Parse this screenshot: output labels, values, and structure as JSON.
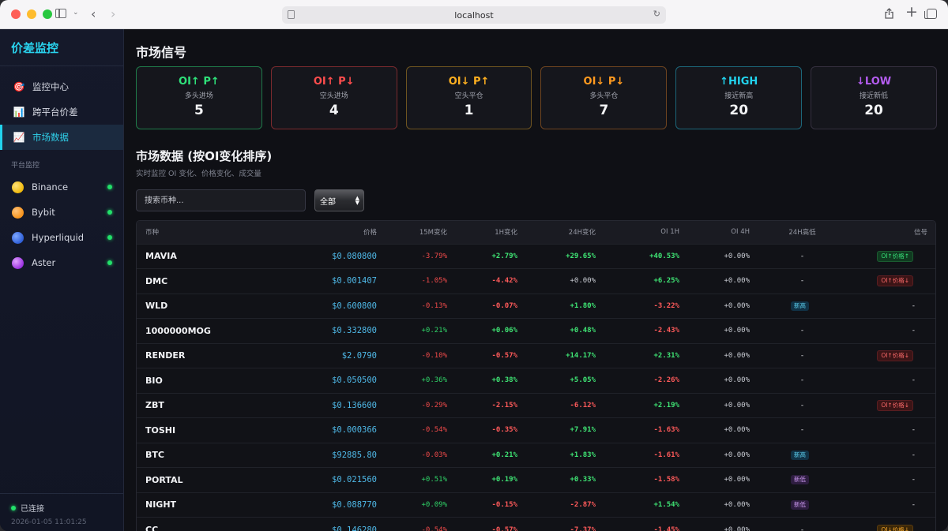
{
  "browser": {
    "url": "localhost"
  },
  "sidebar": {
    "brand": "价差监控",
    "nav": [
      {
        "label": "监控中心",
        "icon": "target-icon",
        "glyph": "🎯"
      },
      {
        "label": "跨平台价差",
        "icon": "bar-chart-icon",
        "glyph": "📊"
      },
      {
        "label": "市场数据",
        "icon": "line-chart-icon",
        "glyph": "📈",
        "active": true
      }
    ],
    "section_label": "平台监控",
    "platforms": [
      {
        "label": "Binance",
        "icon": "binance-dot-icon",
        "status": "online"
      },
      {
        "label": "Bybit",
        "icon": "bybit-dot-icon",
        "status": "online"
      },
      {
        "label": "Hyperliquid",
        "icon": "hyperliquid-dot-icon",
        "status": "online"
      },
      {
        "label": "Aster",
        "icon": "aster-dot-icon",
        "status": "online"
      }
    ],
    "footer": {
      "status": "已连接",
      "time": "2026-01-05 11:01:25"
    }
  },
  "signals": {
    "title": "市场信号",
    "cards": [
      {
        "title": "OI↑ P↑",
        "sub": "多头进场",
        "count": "5",
        "color": "#2fe27a",
        "border": "#1f7a49"
      },
      {
        "title": "OI↑ P↓",
        "sub": "空头进场",
        "count": "4",
        "color": "#ff4d4d",
        "border": "#7a2a2e"
      },
      {
        "title": "OI↓ P↑",
        "sub": "空头平仓",
        "count": "1",
        "color": "#ffb020",
        "border": "#6e5420"
      },
      {
        "title": "OI↓ P↓",
        "sub": "多头平仓",
        "count": "7",
        "color": "#ff9a1f",
        "border": "#6e4420"
      },
      {
        "title": "↑HIGH",
        "sub": "接近新高",
        "count": "20",
        "color": "#22d3ee",
        "border": "#1c6679"
      },
      {
        "title": "↓LOW",
        "sub": "接近新低",
        "count": "20",
        "color": "#b45cf0",
        "border": "#35303f"
      }
    ]
  },
  "market": {
    "title": "市场数据 (按OI变化排序)",
    "subtitle": "实时监控 OI 变化、价格变化、成交量",
    "search_placeholder": "搜索币种...",
    "filter_value": "全部",
    "columns": [
      "币种",
      "价格",
      "15M变化",
      "1H变化",
      "24H变化",
      "OI 1H",
      "OI 4H",
      "24H高低",
      "信号"
    ],
    "rows": [
      {
        "sym": "MAVIA",
        "price": "$0.080800",
        "m15": "-3.79%",
        "h1": "+2.79%",
        "h24": "+29.65%",
        "oi1": "+40.53%",
        "oi4": "+0.00%",
        "hl": "-",
        "sig": "OI↑价格↑"
      },
      {
        "sym": "DMC",
        "price": "$0.001407",
        "m15": "-1.05%",
        "h1": "-4.42%",
        "h24": "+0.00%",
        "oi1": "+6.25%",
        "oi4": "+0.00%",
        "hl": "-",
        "sig": "OI↑价格↓"
      },
      {
        "sym": "WLD",
        "price": "$0.600800",
        "m15": "-0.13%",
        "h1": "-0.07%",
        "h24": "+1.80%",
        "oi1": "-3.22%",
        "oi4": "+0.00%",
        "hl": "新高",
        "sig": "-"
      },
      {
        "sym": "1000000MOG",
        "price": "$0.332800",
        "m15": "+0.21%",
        "h1": "+0.06%",
        "h24": "+0.48%",
        "oi1": "-2.43%",
        "oi4": "+0.00%",
        "hl": "-",
        "sig": "-"
      },
      {
        "sym": "RENDER",
        "price": "$2.0790",
        "m15": "-0.10%",
        "h1": "-0.57%",
        "h24": "+14.17%",
        "oi1": "+2.31%",
        "oi4": "+0.00%",
        "hl": "-",
        "sig": "OI↑价格↓"
      },
      {
        "sym": "BIO",
        "price": "$0.050500",
        "m15": "+0.36%",
        "h1": "+0.38%",
        "h24": "+5.05%",
        "oi1": "-2.26%",
        "oi4": "+0.00%",
        "hl": "-",
        "sig": "-"
      },
      {
        "sym": "ZBT",
        "price": "$0.136600",
        "m15": "-0.29%",
        "h1": "-2.15%",
        "h24": "-6.12%",
        "oi1": "+2.19%",
        "oi4": "+0.00%",
        "hl": "-",
        "sig": "OI↑价格↓"
      },
      {
        "sym": "TOSHI",
        "price": "$0.000366",
        "m15": "-0.54%",
        "h1": "-0.35%",
        "h24": "+7.91%",
        "oi1": "-1.63%",
        "oi4": "+0.00%",
        "hl": "-",
        "sig": "-"
      },
      {
        "sym": "BTC",
        "price": "$92885.80",
        "m15": "-0.03%",
        "h1": "+0.21%",
        "h24": "+1.83%",
        "oi1": "-1.61%",
        "oi4": "+0.00%",
        "hl": "新高",
        "sig": "-"
      },
      {
        "sym": "PORTAL",
        "price": "$0.021560",
        "m15": "+0.51%",
        "h1": "+0.19%",
        "h24": "+0.33%",
        "oi1": "-1.58%",
        "oi4": "+0.00%",
        "hl": "新低",
        "sig": "-"
      },
      {
        "sym": "NIGHT",
        "price": "$0.088770",
        "m15": "+0.09%",
        "h1": "-0.15%",
        "h24": "-2.87%",
        "oi1": "+1.54%",
        "oi4": "+0.00%",
        "hl": "新低",
        "sig": "-"
      },
      {
        "sym": "CC",
        "price": "$0.146280",
        "m15": "-0.54%",
        "h1": "-0.57%",
        "h24": "-7.37%",
        "oi1": "-1.45%",
        "oi4": "+0.00%",
        "hl": "-",
        "sig": "OI↓价格↓"
      }
    ]
  }
}
